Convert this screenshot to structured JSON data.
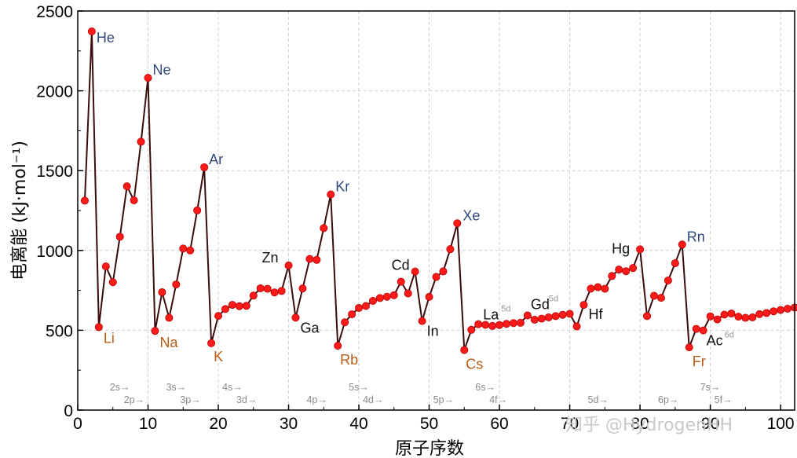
{
  "chart_data": {
    "type": "line",
    "xlabel": "原子序数",
    "ylabel": "电离能 (kJ·mol⁻¹)",
    "xlim": [
      0,
      102
    ],
    "ylim": [
      0,
      2500
    ],
    "xticks": [
      0,
      10,
      20,
      30,
      40,
      50,
      60,
      70,
      80,
      90,
      100
    ],
    "yticks": [
      0,
      500,
      1000,
      1500,
      2000,
      2500
    ],
    "grid": true,
    "colors": {
      "line": "#3b0d0d",
      "marker": "#ff1a1a",
      "noble": "#2e4a7a",
      "alkali": "#b85c12",
      "other": "#111111",
      "orbital": "#8a8a8a"
    },
    "x": [
      1,
      2,
      3,
      4,
      5,
      6,
      7,
      8,
      9,
      10,
      11,
      12,
      13,
      14,
      15,
      16,
      17,
      18,
      19,
      20,
      21,
      22,
      23,
      24,
      25,
      26,
      27,
      28,
      29,
      30,
      31,
      32,
      33,
      34,
      35,
      36,
      37,
      38,
      39,
      40,
      41,
      42,
      43,
      44,
      45,
      46,
      47,
      48,
      49,
      50,
      51,
      52,
      53,
      54,
      55,
      56,
      57,
      58,
      59,
      60,
      61,
      62,
      63,
      64,
      65,
      66,
      67,
      68,
      69,
      70,
      71,
      72,
      73,
      74,
      75,
      76,
      77,
      78,
      79,
      80,
      81,
      82,
      83,
      84,
      85,
      86,
      87,
      88,
      89,
      90,
      91,
      92,
      93,
      94,
      95,
      96,
      97,
      98,
      99,
      100,
      101,
      102
    ],
    "y": [
      1312,
      2372,
      520,
      900,
      801,
      1086,
      1402,
      1314,
      1681,
      2081,
      496,
      738,
      578,
      787,
      1012,
      1000,
      1251,
      1521,
      419,
      590,
      633,
      659,
      651,
      653,
      717,
      763,
      760,
      737,
      746,
      906,
      579,
      762,
      947,
      941,
      1140,
      1351,
      403,
      550,
      600,
      640,
      652,
      684,
      702,
      710,
      720,
      804,
      731,
      868,
      558,
      709,
      834,
      869,
      1008,
      1170,
      376,
      503,
      538,
      534,
      527,
      533,
      540,
      545,
      547,
      593,
      566,
      573,
      581,
      589,
      597,
      603,
      524,
      659,
      761,
      770,
      760,
      840,
      880,
      870,
      890,
      1007,
      589,
      716,
      703,
      812,
      920,
      1037,
      393,
      509,
      499,
      587,
      568,
      598,
      605,
      585,
      578,
      581,
      601,
      608,
      619,
      627,
      635,
      642
    ],
    "annotations": [
      {
        "text": "He",
        "x": 2,
        "y": 2372,
        "group": "noble"
      },
      {
        "text": "Ne",
        "x": 10,
        "y": 2081,
        "group": "noble"
      },
      {
        "text": "Ar",
        "x": 18,
        "y": 1521,
        "group": "noble"
      },
      {
        "text": "Kr",
        "x": 36,
        "y": 1351,
        "group": "noble"
      },
      {
        "text": "Xe",
        "x": 54,
        "y": 1170,
        "group": "noble"
      },
      {
        "text": "Rn",
        "x": 86,
        "y": 1037,
        "group": "noble"
      },
      {
        "text": "Li",
        "x": 3,
        "y": 520,
        "group": "alkali"
      },
      {
        "text": "Na",
        "x": 11,
        "y": 496,
        "group": "alkali"
      },
      {
        "text": "K",
        "x": 19,
        "y": 419,
        "group": "alkali"
      },
      {
        "text": "Rb",
        "x": 37,
        "y": 403,
        "group": "alkali"
      },
      {
        "text": "Cs",
        "x": 55,
        "y": 376,
        "group": "alkali"
      },
      {
        "text": "Fr",
        "x": 87,
        "y": 393,
        "group": "alkali"
      },
      {
        "text": "Zn",
        "x": 30,
        "y": 906,
        "group": "other"
      },
      {
        "text": "Ga",
        "x": 31,
        "y": 579,
        "group": "other"
      },
      {
        "text": "Cd",
        "x": 48,
        "y": 868,
        "group": "other"
      },
      {
        "text": "In",
        "x": 49,
        "y": 558,
        "group": "other"
      },
      {
        "text": "La",
        "x": 57,
        "y": 538,
        "group": "other",
        "sup": "5d"
      },
      {
        "text": "Gd",
        "x": 64,
        "y": 593,
        "group": "other",
        "sup": "5d"
      },
      {
        "text": "Hf",
        "x": 72,
        "y": 659,
        "group": "other"
      },
      {
        "text": "Hg",
        "x": 80,
        "y": 1007,
        "group": "other"
      },
      {
        "text": "Ac",
        "x": 89,
        "y": 499,
        "group": "other",
        "sup": "6d"
      }
    ],
    "orbital_labels": [
      {
        "text": "2s→",
        "x": 3,
        "row": 1
      },
      {
        "text": "2p→",
        "x": 5,
        "row": 2
      },
      {
        "text": "3s→",
        "x": 11,
        "row": 1
      },
      {
        "text": "3p→",
        "x": 13,
        "row": 2
      },
      {
        "text": "4s→",
        "x": 19,
        "row": 1
      },
      {
        "text": "3d→",
        "x": 21,
        "row": 2
      },
      {
        "text": "4p→",
        "x": 31,
        "row": 2
      },
      {
        "text": "5s→",
        "x": 37,
        "row": 1
      },
      {
        "text": "4d→",
        "x": 39,
        "row": 2
      },
      {
        "text": "5p→",
        "x": 49,
        "row": 2
      },
      {
        "text": "6s→",
        "x": 55,
        "row": 1
      },
      {
        "text": "4f→",
        "x": 57,
        "row": 2
      },
      {
        "text": "5d→",
        "x": 71,
        "row": 2
      },
      {
        "text": "6p→",
        "x": 81,
        "row": 2
      },
      {
        "text": "7s→",
        "x": 87,
        "row": 1
      },
      {
        "text": "5f→",
        "x": 89,
        "row": 2
      }
    ]
  },
  "watermark": "知乎 @HydrogenHH"
}
